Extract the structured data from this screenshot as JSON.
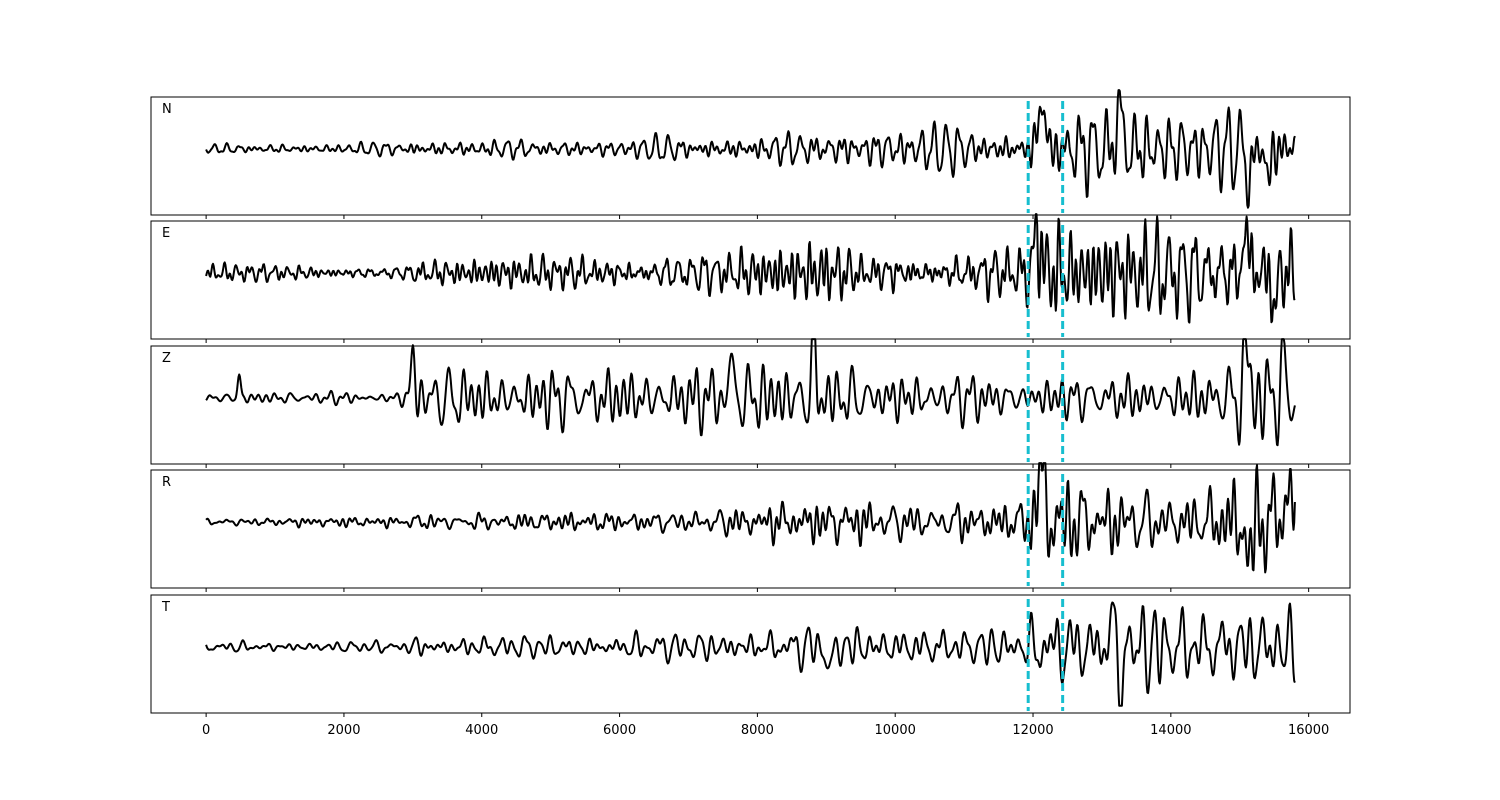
{
  "chart_data": {
    "type": "line",
    "title": "",
    "xlabel": "",
    "ylabel": "",
    "xlim": [
      -800,
      16600
    ],
    "x_ticks": [
      0,
      2000,
      4000,
      6000,
      8000,
      10000,
      12000,
      14000,
      16000
    ],
    "x_tick_labels": [
      "0",
      "2000",
      "4000",
      "6000",
      "8000",
      "10000",
      "12000",
      "14000",
      "16000"
    ],
    "sample_range": [
      0,
      15800
    ],
    "grid": false,
    "legend": "none",
    "line_color": "#000000",
    "marker_color": "#17becf",
    "markers": [
      {
        "x": 11930,
        "style": "dashed"
      },
      {
        "x": 12430,
        "style": "dashed"
      }
    ],
    "panels": [
      {
        "label": "N",
        "envelope": [
          [
            0,
            0.07
          ],
          [
            2900,
            0.1
          ],
          [
            3000,
            0.16
          ],
          [
            6000,
            0.15
          ],
          [
            7600,
            0.24
          ],
          [
            8600,
            0.3
          ],
          [
            9500,
            0.35
          ],
          [
            11000,
            0.32
          ],
          [
            11900,
            0.35
          ],
          [
            12050,
            0.95
          ],
          [
            12300,
            0.7
          ],
          [
            13200,
            0.85
          ],
          [
            14000,
            0.55
          ],
          [
            14800,
            0.55
          ],
          [
            15200,
            0.75
          ],
          [
            15800,
            0.75
          ]
        ],
        "events": [
          {
            "x": 12130,
            "amp": 0.85,
            "width": 90
          },
          {
            "x": 13250,
            "amp": 0.75,
            "width": 80
          },
          {
            "x": 15150,
            "amp": -0.55,
            "width": 80
          },
          {
            "x": 15420,
            "amp": -0.6,
            "width": 60
          }
        ],
        "seed": 11
      },
      {
        "label": "E",
        "envelope": [
          [
            0,
            0.12
          ],
          [
            2900,
            0.12
          ],
          [
            3000,
            0.22
          ],
          [
            7400,
            0.3
          ],
          [
            8400,
            0.45
          ],
          [
            9000,
            0.55
          ],
          [
            9500,
            0.3
          ],
          [
            11000,
            0.42
          ],
          [
            11900,
            0.4
          ],
          [
            12100,
            0.95
          ],
          [
            12600,
            0.6
          ],
          [
            13000,
            0.75
          ],
          [
            14500,
            0.75
          ],
          [
            15100,
            0.95
          ],
          [
            15800,
            0.65
          ]
        ],
        "events": [
          {
            "x": 12070,
            "amp": 0.95,
            "width": 70
          },
          {
            "x": 15100,
            "amp": 0.85,
            "width": 70
          },
          {
            "x": 15500,
            "amp": -0.75,
            "width": 60
          }
        ],
        "seed": 23
      },
      {
        "label": "Z",
        "envelope": [
          [
            0,
            0.07
          ],
          [
            300,
            0.09
          ],
          [
            2800,
            0.09
          ],
          [
            2950,
            0.2
          ],
          [
            3100,
            0.45
          ],
          [
            7600,
            0.55
          ],
          [
            8800,
            0.65
          ],
          [
            9200,
            0.4
          ],
          [
            11000,
            0.35
          ],
          [
            12500,
            0.35
          ],
          [
            13000,
            0.4
          ],
          [
            14200,
            0.4
          ],
          [
            15000,
            0.75
          ],
          [
            15800,
            0.75
          ]
        ],
        "events": [
          {
            "x": 480,
            "amp": 0.42,
            "width": 40
          },
          {
            "x": 3000,
            "amp": 0.75,
            "width": 60
          },
          {
            "x": 7620,
            "amp": 0.7,
            "width": 60
          },
          {
            "x": 8820,
            "amp": 0.95,
            "width": 60
          },
          {
            "x": 15100,
            "amp": 0.95,
            "width": 70
          },
          {
            "x": 15620,
            "amp": 0.6,
            "width": 60
          }
        ],
        "seed": 37
      },
      {
        "label": "R",
        "envelope": [
          [
            0,
            0.06
          ],
          [
            2900,
            0.08
          ],
          [
            3000,
            0.14
          ],
          [
            6000,
            0.14
          ],
          [
            7800,
            0.25
          ],
          [
            9500,
            0.35
          ],
          [
            11000,
            0.3
          ],
          [
            11900,
            0.3
          ],
          [
            12100,
            0.95
          ],
          [
            12600,
            0.6
          ],
          [
            13300,
            0.6
          ],
          [
            14500,
            0.45
          ],
          [
            15100,
            0.8
          ],
          [
            15800,
            0.85
          ]
        ],
        "events": [
          {
            "x": 12120,
            "amp": 0.95,
            "width": 90
          },
          {
            "x": 15130,
            "amp": -0.75,
            "width": 80
          },
          {
            "x": 15700,
            "amp": 0.85,
            "width": 70
          }
        ],
        "seed": 51
      },
      {
        "label": "T",
        "envelope": [
          [
            0,
            0.08
          ],
          [
            2900,
            0.09
          ],
          [
            3000,
            0.18
          ],
          [
            5000,
            0.18
          ],
          [
            7500,
            0.25
          ],
          [
            9000,
            0.35
          ],
          [
            11500,
            0.3
          ],
          [
            11900,
            0.35
          ],
          [
            12100,
            0.75
          ],
          [
            12800,
            0.55
          ],
          [
            13200,
            0.85
          ],
          [
            14000,
            0.65
          ],
          [
            15800,
            0.65
          ]
        ],
        "events": [
          {
            "x": 9050,
            "amp": -0.55,
            "width": 60
          },
          {
            "x": 13250,
            "amp": -0.9,
            "width": 70
          },
          {
            "x": 13150,
            "amp": 0.75,
            "width": 60
          }
        ],
        "seed": 67
      }
    ]
  }
}
